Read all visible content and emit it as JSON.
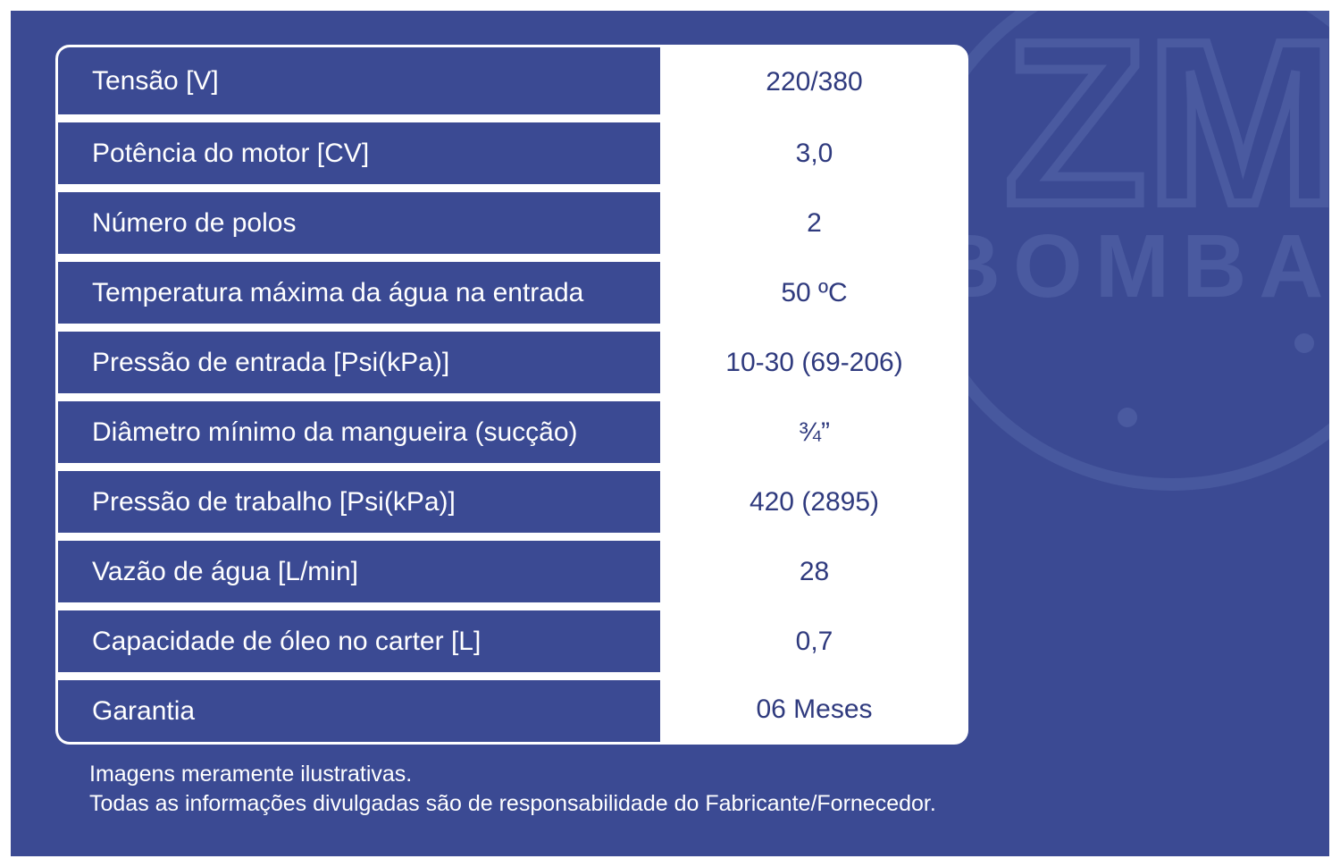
{
  "watermark": {
    "brand_top": "ZM",
    "brand_bottom": "BOMBAS"
  },
  "specs": [
    {
      "label": "Tensão [V]",
      "value": "220/380"
    },
    {
      "label": "Potência do motor [CV]",
      "value": "3,0"
    },
    {
      "label": "Número de polos",
      "value": "2"
    },
    {
      "label": "Temperatura máxima da água na entrada",
      "value": "50 ºC"
    },
    {
      "label": "Pressão de entrada [Psi(kPa)]",
      "value": "10-30 (69-206)"
    },
    {
      "label": "Diâmetro mínimo da mangueira (sucção)",
      "value": "¾”"
    },
    {
      "label": "Pressão de trabalho [Psi(kPa)]",
      "value": "420 (2895)"
    },
    {
      "label": "Vazão de água [L/min]",
      "value": "28"
    },
    {
      "label": "Capacidade de óleo no carter [L]",
      "value": "0,7"
    },
    {
      "label": "Garantia",
      "value": "06 Meses"
    }
  ],
  "footnotes": {
    "line1": "Imagens meramente ilustrativas.",
    "line2": "Todas as informações divulgadas são de responsabilidade do Fabricante/Fornecedor."
  }
}
